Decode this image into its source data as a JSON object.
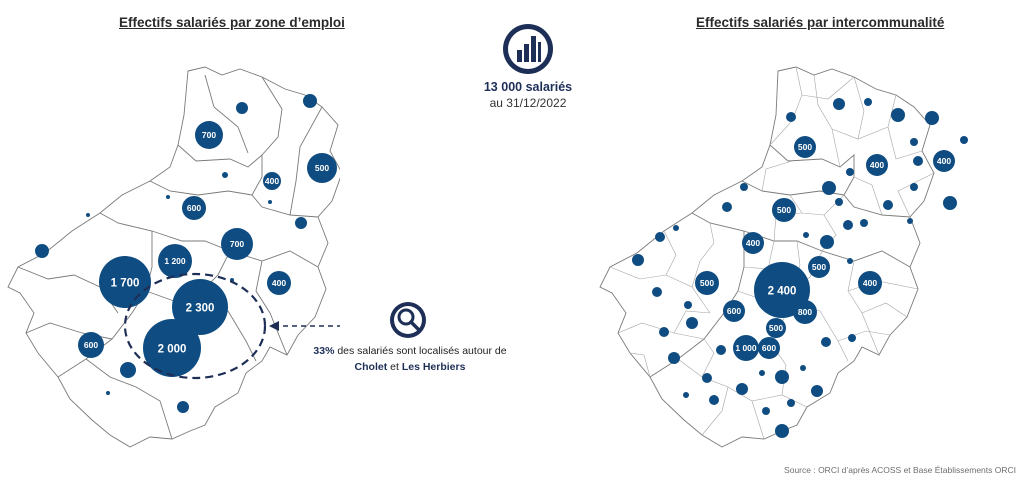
{
  "left_map": {
    "title": "Effectifs salariés par zone d’emploi",
    "bubble_labels": [
      "700",
      "700",
      "500",
      "400",
      "600",
      "700",
      "1 200",
      "1 700",
      "2 300",
      "400",
      "2 000",
      "600"
    ]
  },
  "right_map": {
    "title": "Effectifs salariés par intercommunalité",
    "bubble_labels": [
      "500",
      "400",
      "400",
      "500",
      "400",
      "500",
      "2 400",
      "400",
      "500",
      "600",
      "800",
      "500",
      "1 000",
      "600"
    ]
  },
  "summary": {
    "total": "13 000 salariés",
    "date": "au 31/12/2022",
    "icon": "bar-chart-circle-icon"
  },
  "callout": {
    "icon": "magnifier-circle-icon",
    "share": "33%",
    "text_1": " des salariés sont localisés autour de ",
    "place_1": "Cholet",
    "text_2": " et ",
    "place_2": "Les Herbiers"
  },
  "source": "Source : ORCI d’après ACOSS et Base Établissements ORCI",
  "colors": {
    "bubble": "#0f4c81",
    "dark_navy": "#1d2f57",
    "border": "#6f6f6f"
  }
}
